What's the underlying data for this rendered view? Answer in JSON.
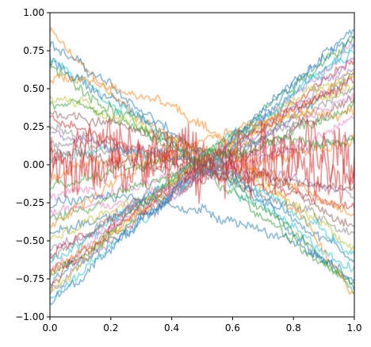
{
  "chart_data": {
    "type": "line",
    "title": "",
    "xlabel": "",
    "ylabel": "",
    "xlim": [
      0,
      1
    ],
    "ylim": [
      -1,
      1
    ],
    "x_ticks": [
      "0.0",
      "0.2",
      "0.4",
      "0.6",
      "0.8",
      "1.0"
    ],
    "y_ticks": [
      "−1.00",
      "−0.75",
      "−0.50",
      "−0.25",
      "0.00",
      "0.25",
      "0.50",
      "0.75",
      "1.00"
    ],
    "grid": false,
    "legend": "none",
    "palette": [
      "#1f77b4",
      "#ff7f0e",
      "#2ca02c",
      "#d62728",
      "#9467bd",
      "#8c564b",
      "#e377c2",
      "#7f7f7f",
      "#bcbd22",
      "#17becf"
    ],
    "series_alpha": 0.5,
    "points_per_series": 201,
    "series": [
      {
        "color": "#ff7f0e",
        "start": 0.88,
        "mid": 0.1,
        "end": 0.2
      },
      {
        "color": "#1f77b4",
        "start": 0.8,
        "mid": 0.05,
        "end": -0.78
      },
      {
        "color": "#17becf",
        "start": 0.7,
        "mid": 0.0,
        "end": -0.7
      },
      {
        "color": "#2ca02c",
        "start": 0.65,
        "mid": -0.05,
        "end": -0.8
      },
      {
        "color": "#1f77b4",
        "start": 0.68,
        "mid": 0.05,
        "end": -0.62
      },
      {
        "color": "#bcbd22",
        "start": 0.45,
        "mid": 0.08,
        "end": -0.55
      },
      {
        "color": "#2ca02c",
        "start": 0.4,
        "mid": 0.0,
        "end": -0.85
      },
      {
        "color": "#8c564b",
        "start": 0.35,
        "mid": 0.1,
        "end": -0.4
      },
      {
        "color": "#d62728",
        "start": 0.3,
        "mid": -0.02,
        "end": -0.3
      },
      {
        "color": "#9467bd",
        "start": 0.2,
        "mid": 0.02,
        "end": -0.2
      },
      {
        "color": "#7f7f7f",
        "start": 0.15,
        "mid": -0.05,
        "end": -0.45
      },
      {
        "color": "#17becf",
        "start": 0.05,
        "mid": 0.0,
        "end": -0.6
      },
      {
        "color": "#ff7f0e",
        "start": -0.1,
        "mid": 0.05,
        "end": -0.35
      },
      {
        "color": "#e377c2",
        "start": -0.2,
        "mid": -0.05,
        "end": 0.3
      },
      {
        "color": "#2ca02c",
        "start": -0.35,
        "mid": 0.0,
        "end": 0.4
      },
      {
        "color": "#1f77b4",
        "start": -0.45,
        "mid": -0.05,
        "end": 0.6
      },
      {
        "color": "#bcbd22",
        "start": -0.5,
        "mid": 0.02,
        "end": 0.55
      },
      {
        "color": "#9467bd",
        "start": -0.55,
        "mid": -0.08,
        "end": 0.65
      },
      {
        "color": "#d62728",
        "start": -0.6,
        "mid": 0.0,
        "end": 0.7
      },
      {
        "color": "#7f7f7f",
        "start": -0.62,
        "mid": -0.03,
        "end": 0.5
      },
      {
        "color": "#17becf",
        "start": -0.65,
        "mid": 0.05,
        "end": 0.75
      },
      {
        "color": "#8c564b",
        "start": -0.68,
        "mid": -0.1,
        "end": 0.45
      },
      {
        "color": "#e377c2",
        "start": -0.7,
        "mid": 0.0,
        "end": 0.8
      },
      {
        "color": "#ff7f0e",
        "start": -0.72,
        "mid": -0.05,
        "end": 0.62
      },
      {
        "color": "#2ca02c",
        "start": -0.75,
        "mid": 0.05,
        "end": 0.85
      },
      {
        "color": "#1f77b4",
        "start": -0.78,
        "mid": -0.02,
        "end": 0.9
      },
      {
        "color": "#d62728",
        "start": -0.8,
        "mid": 0.0,
        "end": 0.55
      },
      {
        "color": "#9467bd",
        "start": -0.82,
        "mid": -0.06,
        "end": 0.7
      },
      {
        "color": "#bcbd22",
        "start": -0.85,
        "mid": 0.03,
        "end": 0.6
      },
      {
        "color": "#17becf",
        "start": -0.88,
        "mid": -0.04,
        "end": 0.78
      },
      {
        "color": "#1f77b4",
        "start": -0.92,
        "mid": 0.0,
        "end": 0.88
      },
      {
        "color": "#ff7f0e",
        "start": -0.4,
        "mid": 0.15,
        "end": 0.35
      },
      {
        "color": "#e377c2",
        "start": -0.3,
        "mid": -0.1,
        "end": 0.5
      },
      {
        "color": "#7f7f7f",
        "start": 0.25,
        "mid": 0.05,
        "end": 0.2
      },
      {
        "color": "#8c564b",
        "start": 0.1,
        "mid": -0.05,
        "end": -0.15
      },
      {
        "color": "#2ca02c",
        "start": -0.15,
        "mid": 0.08,
        "end": 0.15
      },
      {
        "color": "#d62728",
        "start": 0.0,
        "mid": 0.0,
        "end": 0.0,
        "noisy": true
      },
      {
        "color": "#d62728",
        "start": 0.1,
        "mid": 0.05,
        "end": 0.05,
        "noisy": true
      },
      {
        "color": "#ff7f0e",
        "start": 0.55,
        "mid": 0.25,
        "end": -0.85
      },
      {
        "color": "#1f77b4",
        "start": -0.25,
        "mid": -0.3,
        "end": -0.75
      }
    ]
  }
}
